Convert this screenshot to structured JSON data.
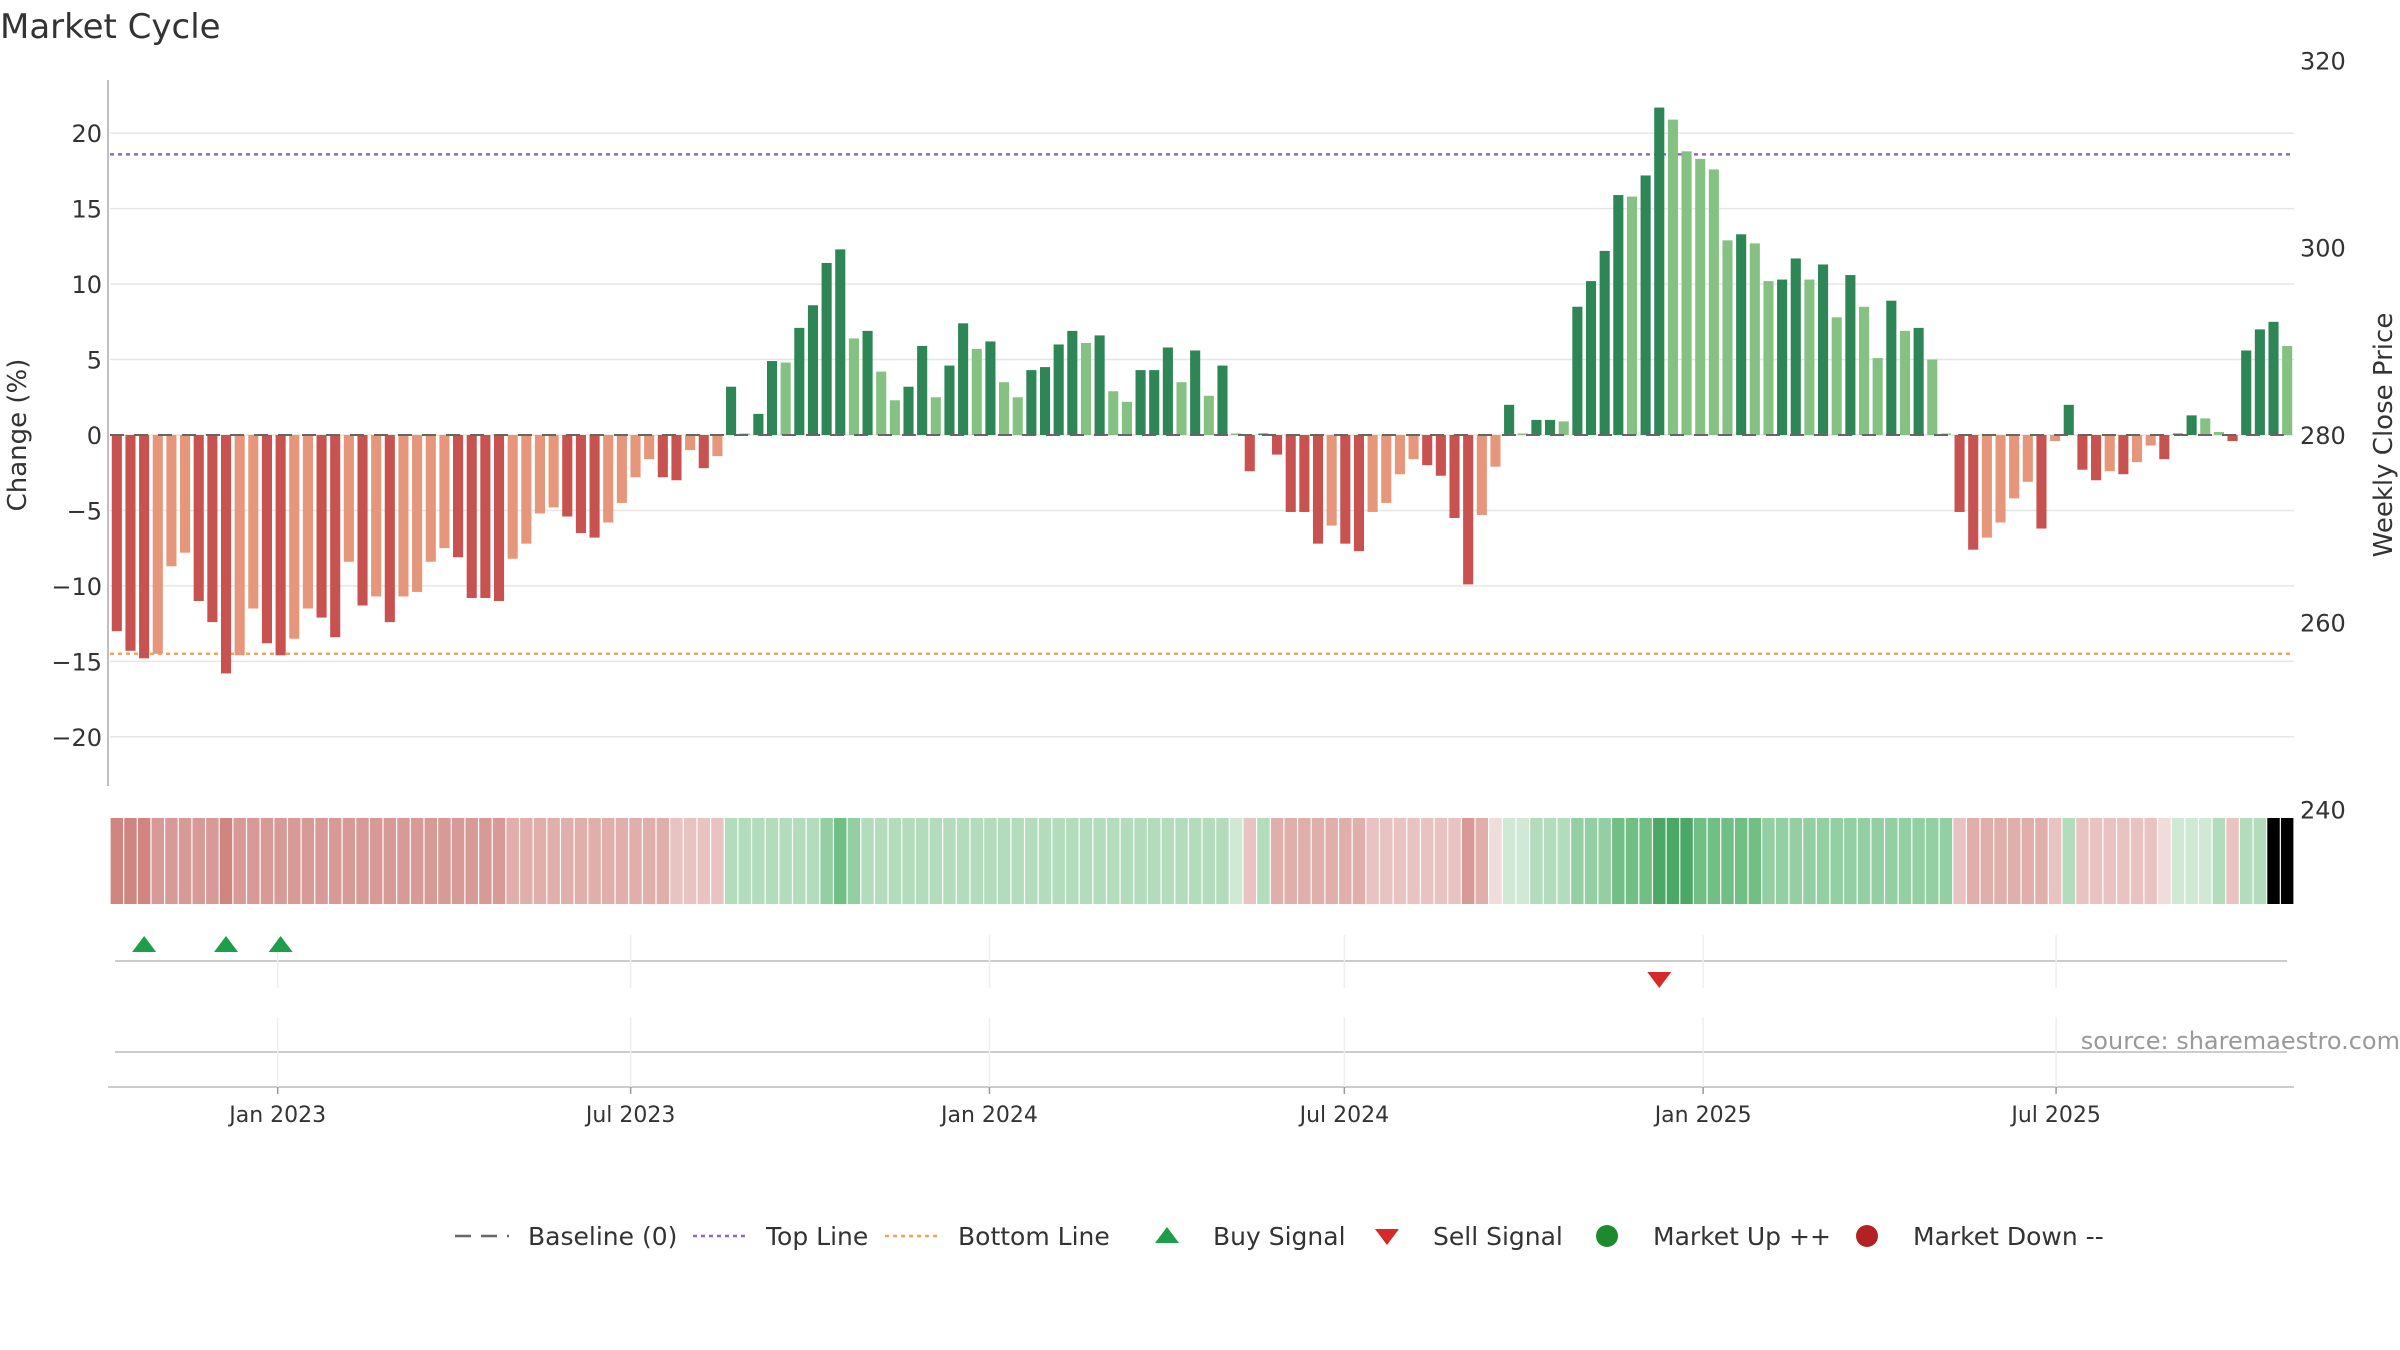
{
  "title": "Market Cycle",
  "source_label": "source: sharemaestro.com",
  "chart_data": {
    "type": "bar",
    "ylabel": "Change (%)",
    "y2label": "Weekly Close Price",
    "ylim": [
      -23,
      24
    ],
    "y_ticks": [
      20,
      15,
      10,
      5,
      0,
      -5,
      -10,
      -15,
      -20
    ],
    "y_tick_labels": [
      "20",
      "15",
      "10",
      "5",
      "0",
      "−5",
      "−10",
      "−15",
      "−20"
    ],
    "y2_ticks": [
      320,
      300,
      280,
      260,
      240
    ],
    "y2_reference": {
      "price": 280,
      "change": 0,
      "price_per_percent": 1.611
    },
    "top_line": 18.6,
    "bottom_line": -14.5,
    "x_start": "2022-10-07",
    "x_step_days": 7,
    "x_ticks": [
      "2023-01-01",
      "2023-07-01",
      "2024-01-01",
      "2024-07-01",
      "2025-01-01",
      "2025-07-01"
    ],
    "x_tick_labels": [
      "Jan 2023",
      "Jul 2023",
      "Jan 2024",
      "Jul 2024",
      "Jan 2025",
      "Jul 2025"
    ],
    "values": [
      -13,
      -14.3,
      -14.8,
      -14.5,
      -8.7,
      -7.8,
      -11,
      -12.4,
      -15.8,
      -14.6,
      -11.5,
      -13.8,
      -14.6,
      -13.5,
      -11.5,
      -12.1,
      -13.4,
      -8.4,
      -11.3,
      -10.7,
      -12.4,
      -10.7,
      -10.4,
      -8.4,
      -7.5,
      -8.1,
      -10.8,
      -10.8,
      -11,
      -8.2,
      -7.2,
      -5.2,
      -4.8,
      -5.4,
      -6.5,
      -6.8,
      -5.8,
      -4.5,
      -2.8,
      -1.6,
      -2.8,
      -3,
      -1,
      -2.2,
      -1.4,
      3.2,
      0,
      1.4,
      4.9,
      4.8,
      7.1,
      8.6,
      11.4,
      12.3,
      6.4,
      6.9,
      4.2,
      2.3,
      3.2,
      5.9,
      2.5,
      4.6,
      7.4,
      5.7,
      6.2,
      3.5,
      2.5,
      4.3,
      4.5,
      6,
      6.9,
      6.1,
      6.6,
      2.9,
      2.2,
      4.3,
      4.3,
      5.8,
      3.5,
      5.6,
      2.6,
      4.6,
      0,
      -2.4,
      0,
      -1.3,
      -5.1,
      -5.1,
      -7.2,
      -6,
      -7.2,
      -7.7,
      -5.1,
      -4.5,
      -2.6,
      -1.6,
      -2,
      -2.7,
      -5.5,
      -9.9,
      -5.3,
      -2.1,
      2,
      0.1,
      1,
      1,
      0.9,
      8.5,
      10.2,
      12.2,
      15.9,
      15.8,
      17.2,
      21.7,
      20.9,
      18.8,
      18.3,
      17.6,
      12.9,
      13.3,
      12.7,
      10.2,
      10.3,
      11.7,
      10.3,
      11.3,
      7.8,
      10.6,
      8.5,
      5.1,
      8.9,
      6.9,
      7.1,
      5,
      0,
      -5.1,
      -7.6,
      -6.8,
      -5.8,
      -4.2,
      -3.1,
      -6.2,
      -0.4,
      2,
      -2.3,
      -3,
      -2.4,
      -2.6,
      -1.8,
      -0.7,
      -1.6,
      0,
      1.3,
      1.1,
      0.2,
      -0.4,
      5.6,
      7,
      7.5,
      5.9
    ],
    "bar_colors": {
      "down_strong": "#c85250",
      "down_weak": "#e6967a",
      "up_strong": "#2e8555",
      "up_weak": "#86c184"
    },
    "strength_colors": {
      "neg": [
        "#f0dcdb",
        "#e8c3c1",
        "#e0aeab",
        "#d89a96",
        "#d08580"
      ],
      "pos": [
        "#cfe9d4",
        "#b2dcbc",
        "#94cfa3",
        "#72bf86",
        "#4ba866"
      ]
    },
    "strength_levels": [
      4,
      4,
      4,
      3,
      3,
      3,
      3,
      3,
      4,
      3,
      3,
      3,
      3,
      3,
      3,
      3,
      3,
      3,
      3,
      3,
      3,
      3,
      3,
      3,
      3,
      3,
      3,
      3,
      3,
      2,
      2,
      2,
      2,
      2,
      2,
      2,
      2,
      2,
      2,
      2,
      2,
      1,
      1,
      1,
      1,
      1,
      1,
      1,
      1,
      1,
      1,
      1,
      2,
      3,
      2,
      1,
      1,
      1,
      1,
      1,
      1,
      1,
      1,
      1,
      1,
      1,
      1,
      1,
      1,
      1,
      1,
      1,
      1,
      1,
      1,
      1,
      1,
      1,
      1,
      1,
      1,
      1,
      0,
      1,
      1,
      2,
      2,
      2,
      2,
      2,
      2,
      2,
      1,
      1,
      1,
      1,
      1,
      1,
      1,
      3,
      2,
      0,
      0,
      0,
      1,
      1,
      1,
      2,
      2,
      2,
      3,
      3,
      3,
      4,
      4,
      4,
      3,
      3,
      3,
      3,
      3,
      2,
      2,
      2,
      2,
      2,
      2,
      2,
      2,
      2,
      2,
      2,
      2,
      2,
      2,
      1,
      2,
      2,
      2,
      2,
      2,
      2,
      1,
      1,
      1,
      1,
      1,
      1,
      1,
      1,
      0,
      0,
      0,
      0,
      1,
      1,
      1,
      1
    ],
    "buy_signals": [
      2,
      8,
      12
    ],
    "sell_signals": [
      113
    ],
    "signal_colors": {
      "buy": "#1e9e4a",
      "sell": "#d62a2a"
    },
    "line_colors": {
      "top": "#9467bd",
      "bottom": "#f0a561",
      "baseline": "#666666"
    },
    "legend_position": "bottom",
    "legend": [
      {
        "label": "Baseline (0)",
        "symbol": "dash",
        "color": "#666666"
      },
      {
        "label": "Top Line",
        "symbol": "dot",
        "color": "#9467bd"
      },
      {
        "label": "Bottom Line",
        "symbol": "dot",
        "color": "#f0a561"
      },
      {
        "label": "Buy Signal",
        "symbol": "triangle-up",
        "color": "#1e9e4a"
      },
      {
        "label": "Sell Signal",
        "symbol": "triangle-down",
        "color": "#d62a2a"
      },
      {
        "label": "Market Up ++",
        "symbol": "circle",
        "color": "#1e8a2e"
      },
      {
        "label": "Market Down --",
        "symbol": "circle",
        "color": "#b22222"
      }
    ]
  }
}
